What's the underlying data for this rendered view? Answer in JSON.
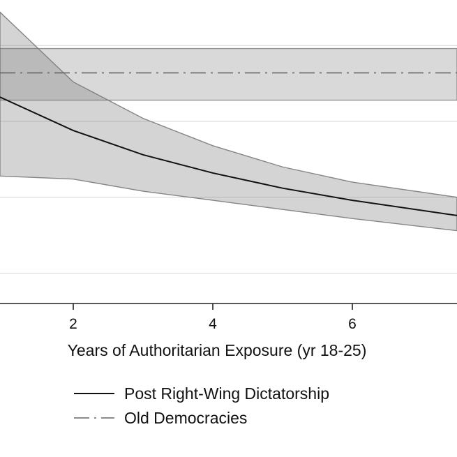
{
  "chart_data": {
    "type": "line",
    "xlabel": "Years of Authoritarian Exposure (yr 18-25)",
    "ylabel": "",
    "xlim": [
      0.95,
      7.5
    ],
    "ylim": [
      -0.1,
      0.9
    ],
    "x_ticks": [
      2,
      4,
      6
    ],
    "y_gridlines": [
      0,
      0.25,
      0.5,
      0.75
    ],
    "grid": true,
    "legend_position": "bottom",
    "series": [
      {
        "name": "Post Right-Wing Dictatorship",
        "style": "solid",
        "color": "#111111",
        "band_color": "#7a7a7a",
        "x": [
          0.95,
          2,
          3,
          4,
          5,
          6,
          7.5
        ],
        "values": [
          0.58,
          0.47,
          0.39,
          0.33,
          0.28,
          0.24,
          0.19
        ],
        "ci_upper": [
          0.86,
          0.63,
          0.51,
          0.42,
          0.35,
          0.3,
          0.25
        ],
        "ci_lower": [
          0.32,
          0.31,
          0.27,
          0.24,
          0.21,
          0.18,
          0.14
        ]
      },
      {
        "name": "Old Democracies",
        "style": "dashdot",
        "color": "#666666",
        "band_color": "#8a8a8a",
        "x": [
          0.95,
          7.5
        ],
        "values": [
          0.66,
          0.66
        ],
        "ci_upper": [
          0.74,
          0.74
        ],
        "ci_lower": [
          0.57,
          0.57
        ]
      }
    ]
  }
}
